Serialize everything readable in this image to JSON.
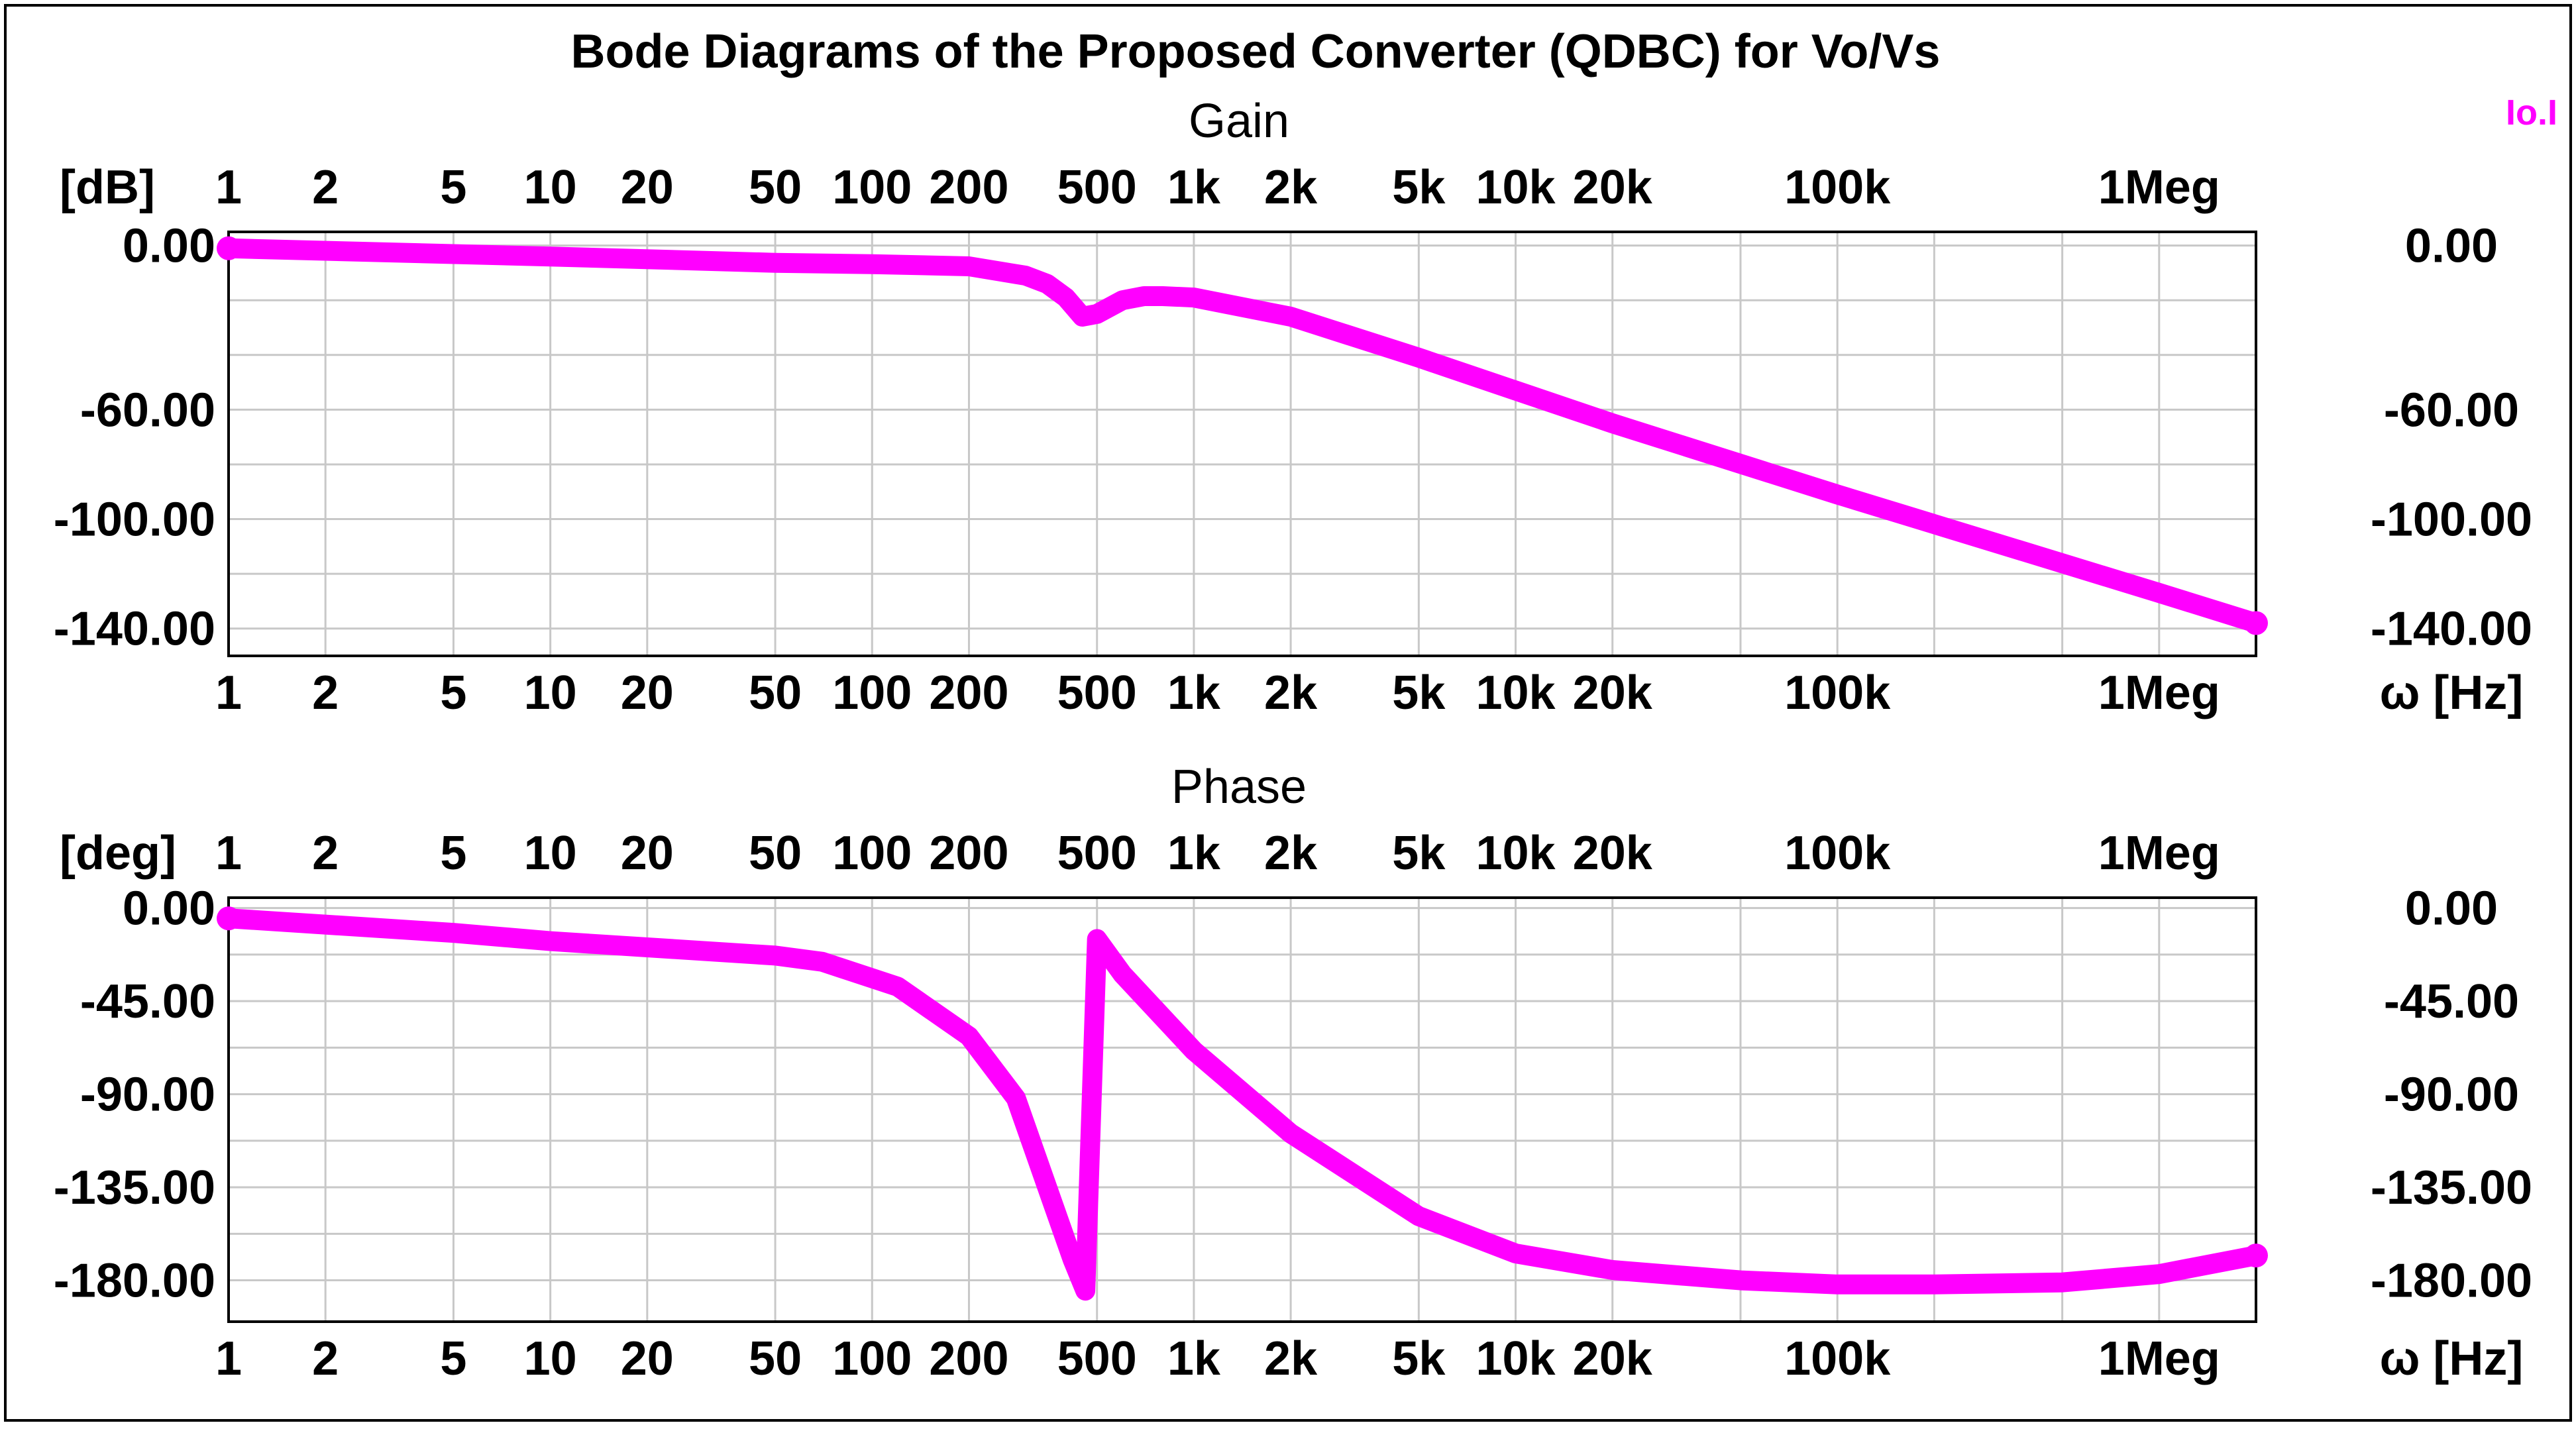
{
  "chart_data": {
    "title": "Bode Diagrams of the Proposed Converter (QDBC) for Vo/Vs",
    "legend_label": "Io.I",
    "trace_color": "#ff00ff",
    "x_scale": "log",
    "xlim": [
      1,
      2000000
    ],
    "x_ticks": [
      {
        "value": 1,
        "label": "1"
      },
      {
        "value": 2,
        "label": "2"
      },
      {
        "value": 5,
        "label": "5"
      },
      {
        "value": 10,
        "label": "10"
      },
      {
        "value": 20,
        "label": "20"
      },
      {
        "value": 50,
        "label": "50"
      },
      {
        "value": 100,
        "label": "100"
      },
      {
        "value": 200,
        "label": "200"
      },
      {
        "value": 500,
        "label": "500"
      },
      {
        "value": 1000,
        "label": "1k"
      },
      {
        "value": 2000,
        "label": "2k"
      },
      {
        "value": 5000,
        "label": "5k"
      },
      {
        "value": 10000,
        "label": "10k"
      },
      {
        "value": 20000,
        "label": "20k"
      },
      {
        "value": 100000,
        "label": "100k"
      },
      {
        "value": 1000000,
        "label": "1Meg"
      }
    ],
    "x_gridlines": [
      1,
      2,
      5,
      10,
      20,
      50,
      100,
      200,
      500,
      1000,
      2000,
      5000,
      10000,
      20000,
      50000,
      100000,
      200000,
      500000,
      1000000
    ],
    "xaxis_label": "ω [Hz]",
    "panels": [
      {
        "type": "line",
        "title": "Gain",
        "ylabel": "[dB]",
        "ylim": [
          -150,
          5
        ],
        "y_ticks": [
          {
            "value": 0,
            "label": "0.00"
          },
          {
            "value": -60,
            "label": "-60.00"
          },
          {
            "value": -100,
            "label": "-100.00"
          },
          {
            "value": -140,
            "label": "-140.00"
          }
        ],
        "y_gridlines": [
          0,
          -20,
          -40,
          -60,
          -80,
          -100,
          -120,
          -140
        ],
        "series": [
          {
            "x": [
              1,
              10,
              50,
              100,
              200,
              300,
              350,
              400,
              450,
              500,
              600,
              700,
              800,
              1000,
              2000,
              5000,
              10000,
              20000,
              100000,
              1000000,
              2000000
            ],
            "y": [
              -1,
              -4,
              -6.3,
              -6.8,
              -7.6,
              -11,
              -14,
              -19,
              -26,
              -25,
              -20,
              -18.5,
              -18.5,
              -19,
              -26,
              -41,
              -53,
              -65,
              -91,
              -127,
              -138
            ]
          }
        ]
      },
      {
        "type": "line",
        "title": "Phase",
        "ylabel": "[deg]",
        "ylim": [
          -200,
          5
        ],
        "y_ticks": [
          {
            "value": 0,
            "label": "0.00"
          },
          {
            "value": -45,
            "label": "-45.00"
          },
          {
            "value": -90,
            "label": "-90.00"
          },
          {
            "value": -135,
            "label": "-135.00"
          },
          {
            "value": -180,
            "label": "-180.00"
          }
        ],
        "y_gridlines": [
          0,
          -22.5,
          -45,
          -67.5,
          -90,
          -112.5,
          -135,
          -157.5,
          -180
        ],
        "series": [
          {
            "x": [
              1,
              5,
              10,
              50,
              70,
              120,
              200,
              280,
              350,
              420,
              460,
              500,
              600,
              1000,
              2000,
              5000,
              10000,
              20000,
              50000,
              100000,
              200000,
              500000,
              1000000,
              2000000
            ],
            "y": [
              -5,
              -12,
              -16,
              -23,
              -26,
              -38,
              -62,
              -92,
              -135,
              -170,
              -185,
              -15,
              -32,
              -69,
              -109,
              -149,
              -167,
              -175,
              -180,
              -182,
              -182,
              -181,
              -177,
              -168
            ]
          }
        ]
      }
    ]
  }
}
